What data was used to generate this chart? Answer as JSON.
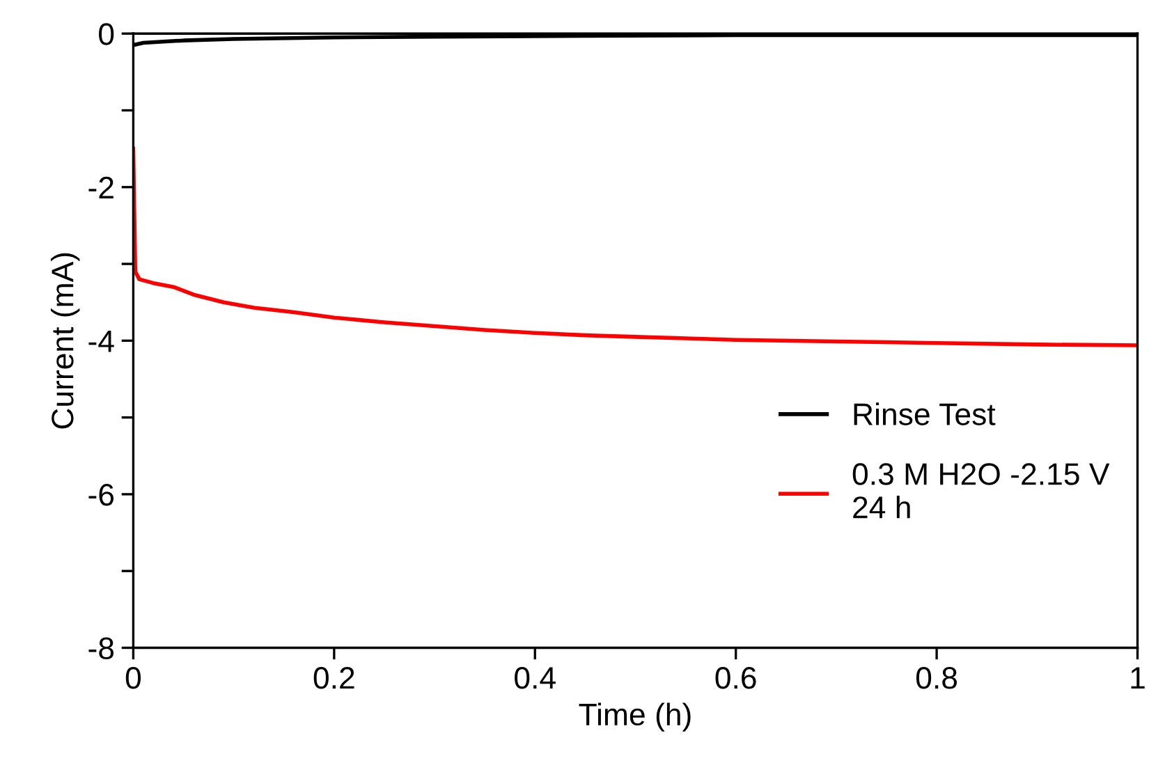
{
  "chart_data": {
    "type": "line",
    "xlabel": "Time (h)",
    "ylabel": "Current (mA)",
    "xlim": [
      0,
      1
    ],
    "xticks": [
      0,
      0.2,
      0.4,
      0.6,
      0.8,
      1
    ],
    "ylim": [
      -8,
      0
    ],
    "yticks": [
      0,
      {
        "value": -1,
        "label": null
      },
      -2,
      {
        "value": -3,
        "label": null
      },
      -4,
      {
        "value": -5,
        "label": null
      },
      -6,
      {
        "value": -7,
        "label": null
      },
      -8
    ],
    "grid": false,
    "legend": "right",
    "marker": "none",
    "line_style": "solid",
    "series": [
      {
        "name": "Rinse Test",
        "color": "#000000",
        "x": [
          0,
          0.01,
          0.05,
          0.1,
          0.2,
          0.3,
          0.45,
          0.6,
          0.8,
          1.0
        ],
        "values": [
          -0.15,
          -0.12,
          -0.09,
          -0.07,
          -0.05,
          -0.04,
          -0.03,
          -0.02,
          -0.02,
          -0.02
        ]
      },
      {
        "name": "0.3 M H2O -2.15 V\n24 h",
        "color": "#ff0000",
        "x": [
          0,
          0.002,
          0.006,
          0.02,
          0.04,
          0.06,
          0.09,
          0.12,
          0.16,
          0.2,
          0.25,
          0.3,
          0.35,
          0.4,
          0.45,
          0.5,
          0.55,
          0.6,
          0.7,
          0.8,
          0.9,
          1.0
        ],
        "values": [
          -1.5,
          -3.1,
          -3.2,
          -3.25,
          -3.3,
          -3.4,
          -3.5,
          -3.57,
          -3.63,
          -3.7,
          -3.76,
          -3.81,
          -3.86,
          -3.9,
          -3.93,
          -3.95,
          -3.97,
          -3.99,
          -4.01,
          -4.03,
          -4.05,
          -4.06
        ]
      }
    ]
  }
}
